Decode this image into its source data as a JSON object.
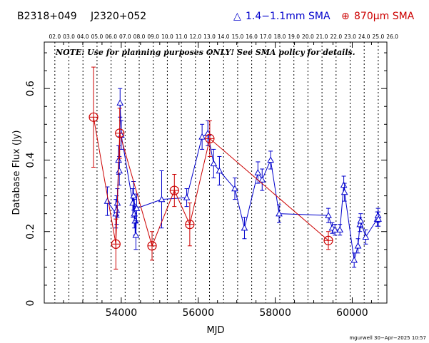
{
  "header": {
    "source_names": [
      "B2318+049",
      "J2320+052"
    ],
    "legend": [
      {
        "symbol": "△",
        "label": "1.4−1.1mm SMA",
        "color": "#0000cc"
      },
      {
        "symbol": "⊕",
        "label": "870μm SMA",
        "color": "#cc0000"
      }
    ]
  },
  "note": "NOTE: Use for planning purposes ONLY! See SMA policy for details.",
  "credit": "mgurwell 30−Apr−2025 10:57",
  "chart_data": {
    "type": "scatter",
    "xlabel": "MJD",
    "ylabel": "Database Flux (Jy)",
    "xlim": [
      52000,
      60900
    ],
    "ylim": [
      0,
      0.73
    ],
    "xticks": [
      54000,
      56000,
      58000,
      60000
    ],
    "yticks": [
      0,
      0.2,
      0.4,
      0.6
    ],
    "ytick_labels": [
      "0",
      "0.2",
      "0.4",
      "0.6"
    ],
    "top_axis_labels": [
      "02.0",
      "03.0",
      "04.0",
      "05.0",
      "06.0",
      "07.0",
      "08.0",
      "09.0",
      "10.0",
      "11.0",
      "12.0",
      "13.0",
      "14.0",
      "15.0",
      "16.0",
      "17.0",
      "18.0",
      "19.0",
      "20.0",
      "21.0",
      "22.0",
      "23.0",
      "24.0",
      "25.0",
      "26.0"
    ],
    "top_axis_first_mjd": 52275,
    "top_axis_step_mjd": 365.25,
    "series": [
      {
        "label": "1.4−1.1mm SMA",
        "color": "#0000cc",
        "marker": "triangle",
        "points": [
          [
            53640,
            0.285,
            0.04
          ],
          [
            53860,
            0.25,
            0.04
          ],
          [
            53880,
            0.26,
            0.04
          ],
          [
            53900,
            0.28,
            0.04
          ],
          [
            53930,
            0.4,
            0.04
          ],
          [
            53950,
            0.37,
            0.04
          ],
          [
            53970,
            0.56,
            0.04
          ],
          [
            54000,
            0.47,
            0.04
          ],
          [
            54300,
            0.28,
            0.04
          ],
          [
            54320,
            0.3,
            0.04
          ],
          [
            54340,
            0.25,
            0.04
          ],
          [
            54360,
            0.23,
            0.04
          ],
          [
            54380,
            0.19,
            0.04
          ],
          [
            54400,
            0.265,
            0.04
          ],
          [
            55050,
            0.29,
            0.08
          ],
          [
            55700,
            0.295,
            0.025
          ],
          [
            56100,
            0.465,
            0.035
          ],
          [
            56250,
            0.475,
            0.035
          ],
          [
            56400,
            0.39,
            0.04
          ],
          [
            56550,
            0.37,
            0.04
          ],
          [
            56950,
            0.32,
            0.03
          ],
          [
            57200,
            0.21,
            0.03
          ],
          [
            57550,
            0.365,
            0.03
          ],
          [
            57660,
            0.345,
            0.03
          ],
          [
            57880,
            0.4,
            0.025
          ],
          [
            58100,
            0.25,
            0.025
          ],
          [
            59380,
            0.245,
            0.02
          ],
          [
            59480,
            0.21,
            0.015
          ],
          [
            59550,
            0.205,
            0.015
          ],
          [
            59680,
            0.205,
            0.015
          ],
          [
            59780,
            0.33,
            0.025
          ],
          [
            59800,
            0.31,
            0.025
          ],
          [
            60050,
            0.12,
            0.02
          ],
          [
            60150,
            0.16,
            0.02
          ],
          [
            60200,
            0.22,
            0.02
          ],
          [
            60220,
            0.23,
            0.02
          ],
          [
            60350,
            0.185,
            0.02
          ],
          [
            60650,
            0.235,
            0.02
          ],
          [
            60670,
            0.245,
            0.02
          ],
          [
            60680,
            0.235,
            0.02
          ]
        ]
      },
      {
        "label": "870μm SMA",
        "color": "#cc0000",
        "marker": "circle-plus",
        "points": [
          [
            53280,
            0.52,
            0.14
          ],
          [
            53860,
            0.165,
            0.07
          ],
          [
            53960,
            0.475,
            0.07
          ],
          [
            54800,
            0.16,
            0.04
          ],
          [
            55380,
            0.315,
            0.045
          ],
          [
            55780,
            0.22,
            0.06
          ],
          [
            56300,
            0.46,
            0.05
          ],
          [
            59380,
            0.175,
            0.025
          ]
        ]
      }
    ]
  }
}
